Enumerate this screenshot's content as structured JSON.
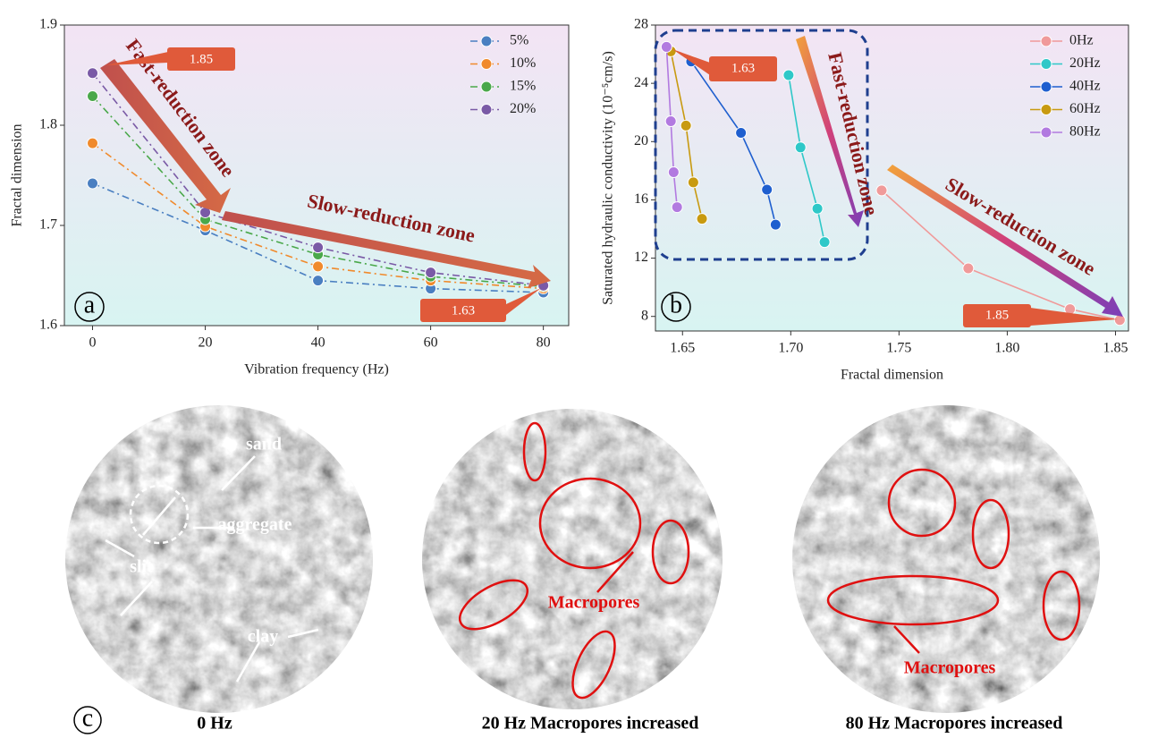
{
  "chart_data": [
    {
      "type": "line",
      "x_label": "Vibration frequency (Hz)",
      "y_label": "Fractal dimension",
      "x": [
        0,
        20,
        40,
        60,
        80
      ],
      "series": [
        {
          "name": "5%",
          "color": "#4a7fc1",
          "values": [
            1.742,
            1.695,
            1.645,
            1.637,
            1.633
          ]
        },
        {
          "name": "10%",
          "color": "#f08a2c",
          "values": [
            1.782,
            1.699,
            1.659,
            1.645,
            1.637
          ]
        },
        {
          "name": "15%",
          "color": "#4aa84a",
          "values": [
            1.829,
            1.706,
            1.671,
            1.649,
            1.639
          ]
        },
        {
          "name": "20%",
          "color": "#7a5aa6",
          "values": [
            1.852,
            1.713,
            1.678,
            1.653,
            1.64
          ]
        }
      ],
      "xlim": [
        -5,
        84.5
      ],
      "xticks": [
        0,
        20,
        40,
        60,
        80
      ],
      "ylim": [
        1.6,
        1.9
      ],
      "yticks": [
        1.6,
        1.7,
        1.8,
        1.9
      ],
      "line_style": "dash-dot",
      "legend": "upper right",
      "panel_label": "a",
      "annotations": [
        "Fast-reduction zone",
        "Slow-reduction zone",
        "1.85",
        "1.63"
      ]
    },
    {
      "type": "line",
      "x_label": "Fractal dimension",
      "y_label": "Saturated hydraulic conductivity (10⁻⁵cm/s)",
      "series": [
        {
          "name": "0Hz",
          "color": "#f09a9a",
          "x": [
            1.742,
            1.782,
            1.829,
            1.852
          ],
          "values": [
            16.65,
            11.3,
            8.5,
            7.75
          ]
        },
        {
          "name": "20Hz",
          "color": "#2ec8c8",
          "x": [
            1.699,
            1.7045,
            1.7123,
            1.7156
          ],
          "values": [
            24.56,
            19.6,
            15.4,
            13.1
          ]
        },
        {
          "name": "40Hz",
          "color": "#1f5fcf",
          "x": [
            1.654,
            1.677,
            1.689,
            1.693
          ],
          "values": [
            25.5,
            20.6,
            16.7,
            14.3
          ]
        },
        {
          "name": "60Hz",
          "color": "#c89a10",
          "x": [
            1.6446,
            1.6516,
            1.655,
            1.659
          ],
          "values": [
            26.2,
            21.1,
            17.2,
            14.7
          ]
        },
        {
          "name": "80Hz",
          "color": "#b27ae0",
          "x": [
            1.6426,
            1.6446,
            1.6459,
            1.6475
          ],
          "values": [
            26.5,
            21.4,
            17.9,
            15.5
          ]
        }
      ],
      "xlim": [
        1.6375,
        1.856
      ],
      "xticks": [
        1.65,
        {
          "value": 1.7,
          "label": "1.70"
        },
        1.75,
        {
          "value": 1.8,
          "label": "1.80"
        },
        1.85
      ],
      "ylim": [
        7,
        28
      ],
      "yticks": [
        8,
        12,
        16,
        20,
        24,
        28
      ],
      "line_style": "solid",
      "legend": "upper right",
      "panel_label": "b",
      "annotations": [
        "Fast-reduction zone",
        "Slow-reduction zone",
        "1.63",
        "1.85"
      ]
    }
  ],
  "micrographs": {
    "panel_label": "c",
    "captions": [
      "0 Hz",
      "20 Hz Macropores increased",
      "80 Hz Macropores increased"
    ],
    "labels_0hz": [
      "sand",
      "aggregate",
      "slit",
      "clay"
    ],
    "labels_20hz": [
      "Macropores"
    ],
    "labels_80hz": [
      "Macropores"
    ]
  }
}
